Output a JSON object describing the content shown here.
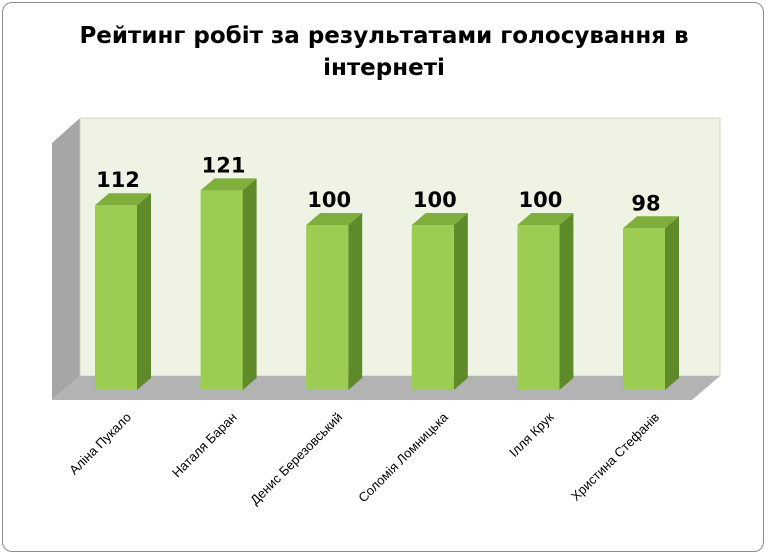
{
  "chart_data": {
    "type": "bar",
    "title_lines": [
      "Рейтинг робіт за результатами голосування в",
      "інтернеті"
    ],
    "categories": [
      "Аліна Пукало",
      "Наталя Баран",
      "Денис Березовський",
      "Соломія Ломницька",
      "Ілля Крук",
      "Христина Стефанів"
    ],
    "values": [
      112,
      121,
      100,
      100,
      100,
      98
    ],
    "xlabel": "",
    "ylabel": "",
    "ylim": [
      0,
      121
    ],
    "grid": false,
    "legend": "none",
    "style": "3d-column",
    "colors": {
      "bar_front": "#9ccd52",
      "bar_side": "#5f8a2a",
      "bar_top": "#7fae3c",
      "back_wall": "#eef3e4",
      "side_wall": "#a6a6a6",
      "floor": "#b3b3b3"
    }
  }
}
